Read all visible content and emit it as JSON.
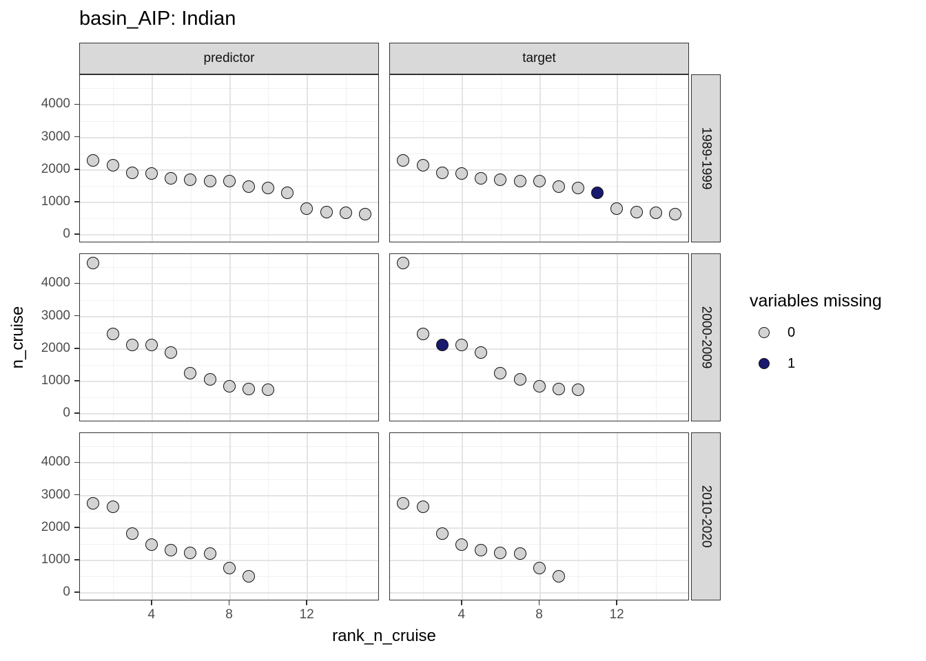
{
  "title": "basin_AIP: Indian",
  "axes": {
    "x_label": "rank_n_cruise",
    "y_label": "n_cruise"
  },
  "facets": {
    "columns": [
      "predictor",
      "target"
    ],
    "rows": [
      "1989-1999",
      "2000-2009",
      "2010-2020"
    ]
  },
  "legend": {
    "title": "variables missing",
    "items": [
      {
        "label": "0",
        "color": "#d3d3d3"
      },
      {
        "label": "1",
        "color": "#191970"
      }
    ]
  },
  "colors": {
    "point_fill_missing0": "#d3d3d3",
    "point_fill_missing1": "#191970",
    "point_stroke": "#111111",
    "strip_fill": "#d9d9d9",
    "panel_border": "#333333",
    "grid_major": "#e4e4e4",
    "grid_minor": "#f1f1f1",
    "tick_label_color": "#4d4d4d"
  },
  "chart_data": {
    "type": "scatter",
    "title": "basin_AIP: Indian",
    "xlabel": "rank_n_cruise",
    "ylabel": "n_cruise",
    "facet_columns": [
      "predictor",
      "target"
    ],
    "facet_rows": [
      "1989-1999",
      "2000-2009",
      "2010-2020"
    ],
    "x_ticks": [
      4,
      8,
      12
    ],
    "y_ticks": [
      0,
      1000,
      2000,
      3000,
      4000
    ],
    "x_minor_gridlines": [
      2,
      6,
      10,
      14
    ],
    "y_minor_gridlines": [
      500,
      1500,
      2500,
      3500,
      4500
    ],
    "xlim": [
      0.28,
      15.72
    ],
    "ylim": [
      -250,
      4920
    ],
    "grid": true,
    "legend_title": "variables missing",
    "legend_position": "right",
    "rows": [
      {
        "facet_row": "1989-1999",
        "ranks": [
          1,
          2,
          3,
          4,
          5,
          6,
          7,
          8,
          9,
          10,
          11,
          12,
          13,
          14,
          15
        ],
        "n_cruise": [
          2270,
          2120,
          1900,
          1880,
          1720,
          1680,
          1650,
          1630,
          1470,
          1430,
          1270,
          800,
          690,
          660,
          630
        ],
        "predictor_missing_ranks": [],
        "target_missing_ranks": [
          11
        ]
      },
      {
        "facet_row": "2000-2009",
        "ranks": [
          1,
          2,
          3,
          4,
          5,
          6,
          7,
          8,
          9,
          10
        ],
        "n_cruise": [
          4620,
          2440,
          2110,
          2100,
          1880,
          1240,
          1040,
          830,
          740,
          720
        ],
        "predictor_missing_ranks": [],
        "target_missing_ranks": [
          3
        ]
      },
      {
        "facet_row": "2010-2020",
        "ranks": [
          1,
          2,
          3,
          4,
          5,
          6,
          7,
          8,
          9
        ],
        "n_cruise": [
          2740,
          2630,
          1800,
          1470,
          1310,
          1210,
          1190,
          750,
          490
        ],
        "predictor_missing_ranks": [],
        "target_missing_ranks": []
      }
    ]
  }
}
